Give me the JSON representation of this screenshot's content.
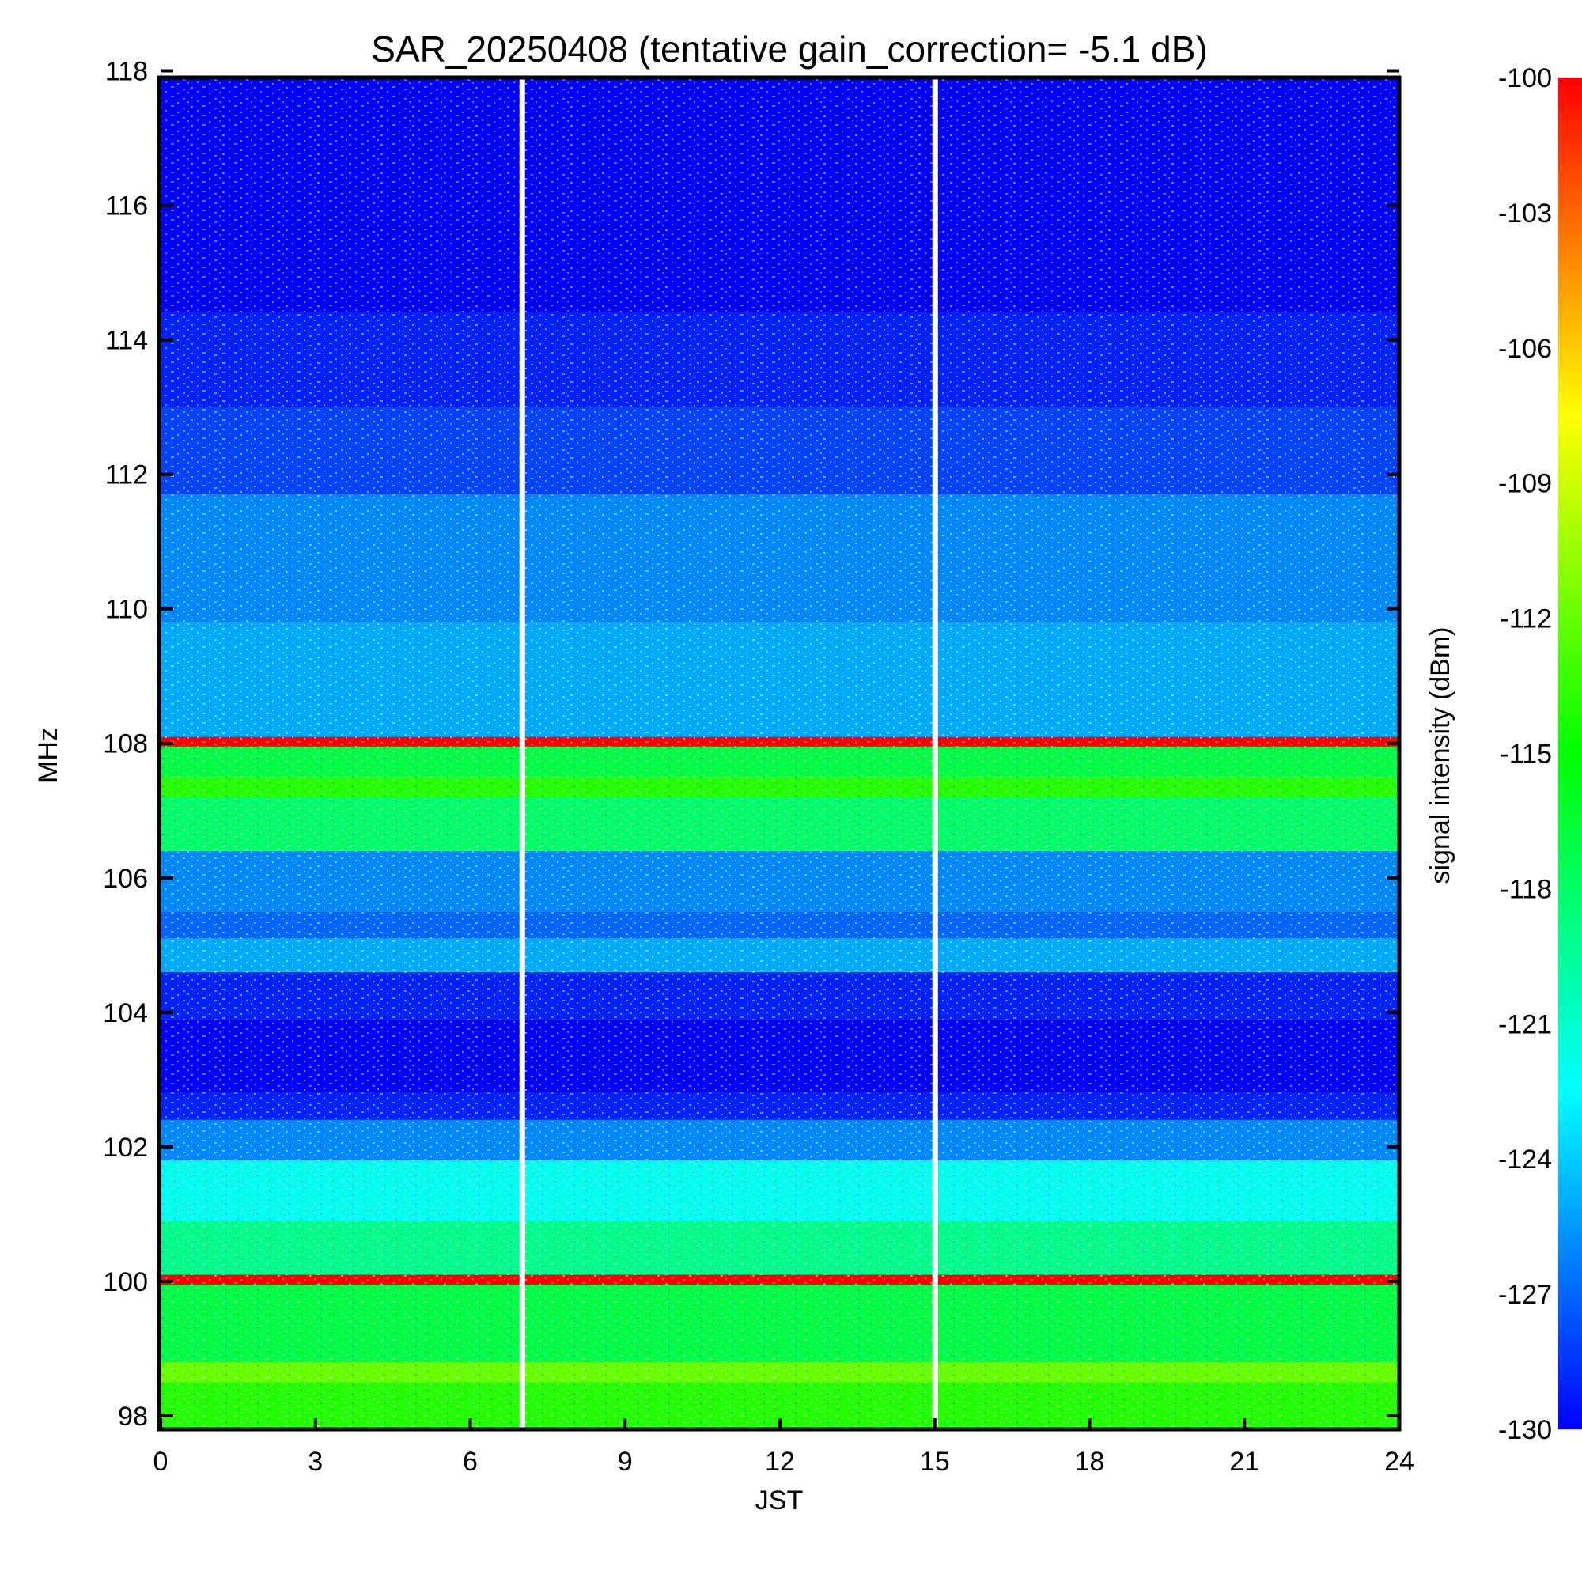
{
  "chart_data": {
    "type": "heatmap",
    "title": "SAR_20250408 (tentative gain_correction= -5.1 dB)",
    "xlabel": "JST",
    "ylabel": "MHz",
    "colorbar_label": "signal intensity (dBm)",
    "xlim": [
      0,
      24
    ],
    "ylim": [
      97.8,
      117.9
    ],
    "x_ticks": [
      "0",
      "3",
      "6",
      "9",
      "12",
      "15",
      "18",
      "21",
      "24"
    ],
    "y_ticks": [
      "98",
      "100",
      "102",
      "104",
      "106",
      "108",
      "110",
      "112",
      "114",
      "116",
      "118"
    ],
    "colorbar_range": [
      -130,
      -100
    ],
    "colorbar_ticks": [
      "-100",
      "-103",
      "-106",
      "-109",
      "-112",
      "-115",
      "-118",
      "-121",
      "-124",
      "-127",
      "-130"
    ],
    "colormap": [
      "#0000ff",
      "#00ffff",
      "#00ff00",
      "#ffff00",
      "#ff0000"
    ],
    "data_gaps_jst": [
      7.0,
      15.0
    ],
    "frequency_bands": [
      {
        "from": 97.8,
        "to": 98.5,
        "dbm": -114
      },
      {
        "from": 98.5,
        "to": 98.8,
        "dbm": -112
      },
      {
        "from": 98.8,
        "to": 100.0,
        "dbm": -117
      },
      {
        "from": 100.0,
        "to": 100.1,
        "dbm": -100
      },
      {
        "from": 100.1,
        "to": 100.9,
        "dbm": -119
      },
      {
        "from": 100.9,
        "to": 101.8,
        "dbm": -122
      },
      {
        "from": 101.8,
        "to": 102.4,
        "dbm": -126
      },
      {
        "from": 102.4,
        "to": 102.8,
        "dbm": -129
      },
      {
        "from": 102.8,
        "to": 103.9,
        "dbm": -131
      },
      {
        "from": 103.9,
        "to": 104.6,
        "dbm": -129
      },
      {
        "from": 104.6,
        "to": 105.1,
        "dbm": -125
      },
      {
        "from": 105.1,
        "to": 105.5,
        "dbm": -127
      },
      {
        "from": 105.5,
        "to": 106.4,
        "dbm": -126
      },
      {
        "from": 106.4,
        "to": 107.2,
        "dbm": -118
      },
      {
        "from": 107.2,
        "to": 107.5,
        "dbm": -114
      },
      {
        "from": 107.5,
        "to": 108.0,
        "dbm": -117
      },
      {
        "from": 108.0,
        "to": 108.1,
        "dbm": -100
      },
      {
        "from": 108.1,
        "to": 109.8,
        "dbm": -125
      },
      {
        "from": 109.8,
        "to": 111.7,
        "dbm": -126
      },
      {
        "from": 111.7,
        "to": 113.0,
        "dbm": -128
      },
      {
        "from": 113.0,
        "to": 114.4,
        "dbm": -129
      },
      {
        "from": 114.4,
        "to": 117.9,
        "dbm": -131
      }
    ],
    "strong_lines_mhz": [
      100.0,
      108.0
    ],
    "grid": false,
    "legend": "colorbar-right"
  }
}
